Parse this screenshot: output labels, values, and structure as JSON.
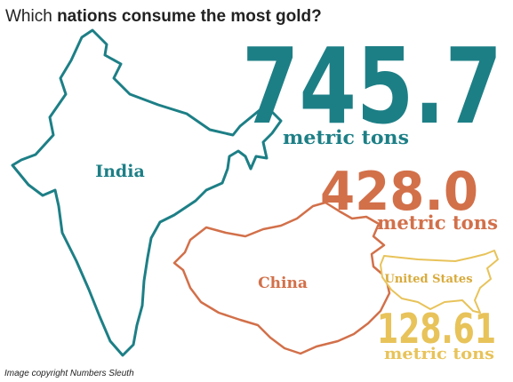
{
  "header": {
    "title_lead": "Which ",
    "title_bold": "nations consume the most gold?"
  },
  "countries": [
    {
      "name": "India",
      "amount": "745.7",
      "unit": "metric tons"
    },
    {
      "name": "China",
      "amount": "428.0",
      "unit": "metric tons"
    },
    {
      "name": "United States",
      "amount": "128.61",
      "unit": "metric tons"
    }
  ],
  "footer": {
    "credit": "Image copyright Numbers Sleuth"
  }
}
